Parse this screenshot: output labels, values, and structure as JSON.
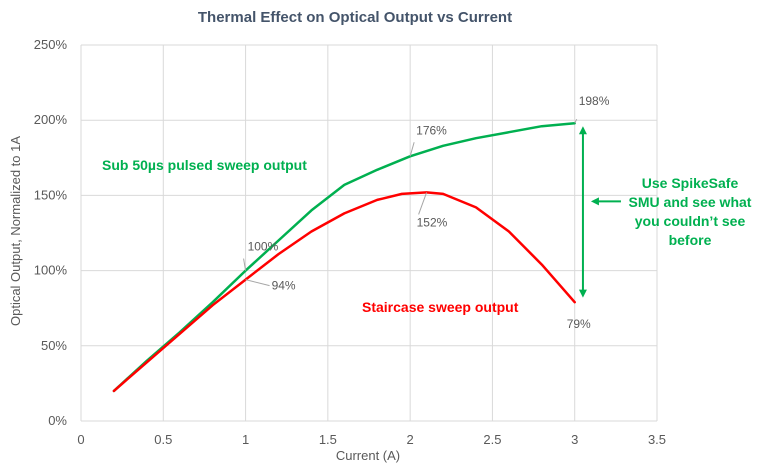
{
  "chart_data": {
    "type": "line",
    "title": "Thermal Effect on Optical Output vs Current",
    "xlabel": "Current (A)",
    "ylabel": "Optical Output, Normalized to 1A",
    "xlim": [
      0,
      3.5
    ],
    "ylim": [
      0,
      250
    ],
    "xticks": [
      "0",
      "0.5",
      "1",
      "1.5",
      "2",
      "2.5",
      "3",
      "3.5"
    ],
    "yticks": [
      "0%",
      "50%",
      "100%",
      "150%",
      "200%",
      "250%"
    ],
    "grid": true,
    "series": [
      {
        "name": "Sub 50µs pulsed sweep output",
        "color": "#00b050",
        "x": [
          0.2,
          0.4,
          0.6,
          0.8,
          1.0,
          1.2,
          1.4,
          1.6,
          1.8,
          2.0,
          2.2,
          2.4,
          2.6,
          2.8,
          3.0
        ],
        "y": [
          20,
          40,
          59,
          79,
          100,
          120,
          140,
          157,
          167,
          176,
          183,
          188,
          192,
          196,
          198
        ]
      },
      {
        "name": "Staircase sweep output",
        "color": "#ff0000",
        "x": [
          0.2,
          0.4,
          0.6,
          0.8,
          1.0,
          1.2,
          1.4,
          1.6,
          1.8,
          1.95,
          2.1,
          2.2,
          2.4,
          2.6,
          2.8,
          3.0
        ],
        "y": [
          20,
          39,
          58,
          77,
          94,
          111,
          126,
          138,
          147,
          151,
          152,
          151,
          142,
          126,
          104,
          79
        ]
      }
    ],
    "data_labels": [
      {
        "x": 1.0,
        "y": 100,
        "text": "100%",
        "series": 0
      },
      {
        "x": 2.0,
        "y": 176,
        "text": "176%",
        "series": 0
      },
      {
        "x": 3.0,
        "y": 198,
        "text": "198%",
        "series": 0
      },
      {
        "x": 1.0,
        "y": 94,
        "text": "94%",
        "series": 1
      },
      {
        "x": 2.1,
        "y": 152,
        "text": "152%",
        "series": 1
      },
      {
        "x": 3.0,
        "y": 79,
        "text": "79%",
        "series": 1
      }
    ],
    "annotations": {
      "pulsed_label": "Sub 50µs pulsed sweep output",
      "staircase_label": "Staircase sweep output",
      "callout_lines": [
        "Use SpikeSafe",
        "SMU and see what",
        "you couldn’t see",
        "before"
      ]
    },
    "colors": {
      "pulsed": "#00b050",
      "staircase": "#ff0000",
      "callout": "#00b050",
      "grid": "#d9d9d9"
    }
  }
}
